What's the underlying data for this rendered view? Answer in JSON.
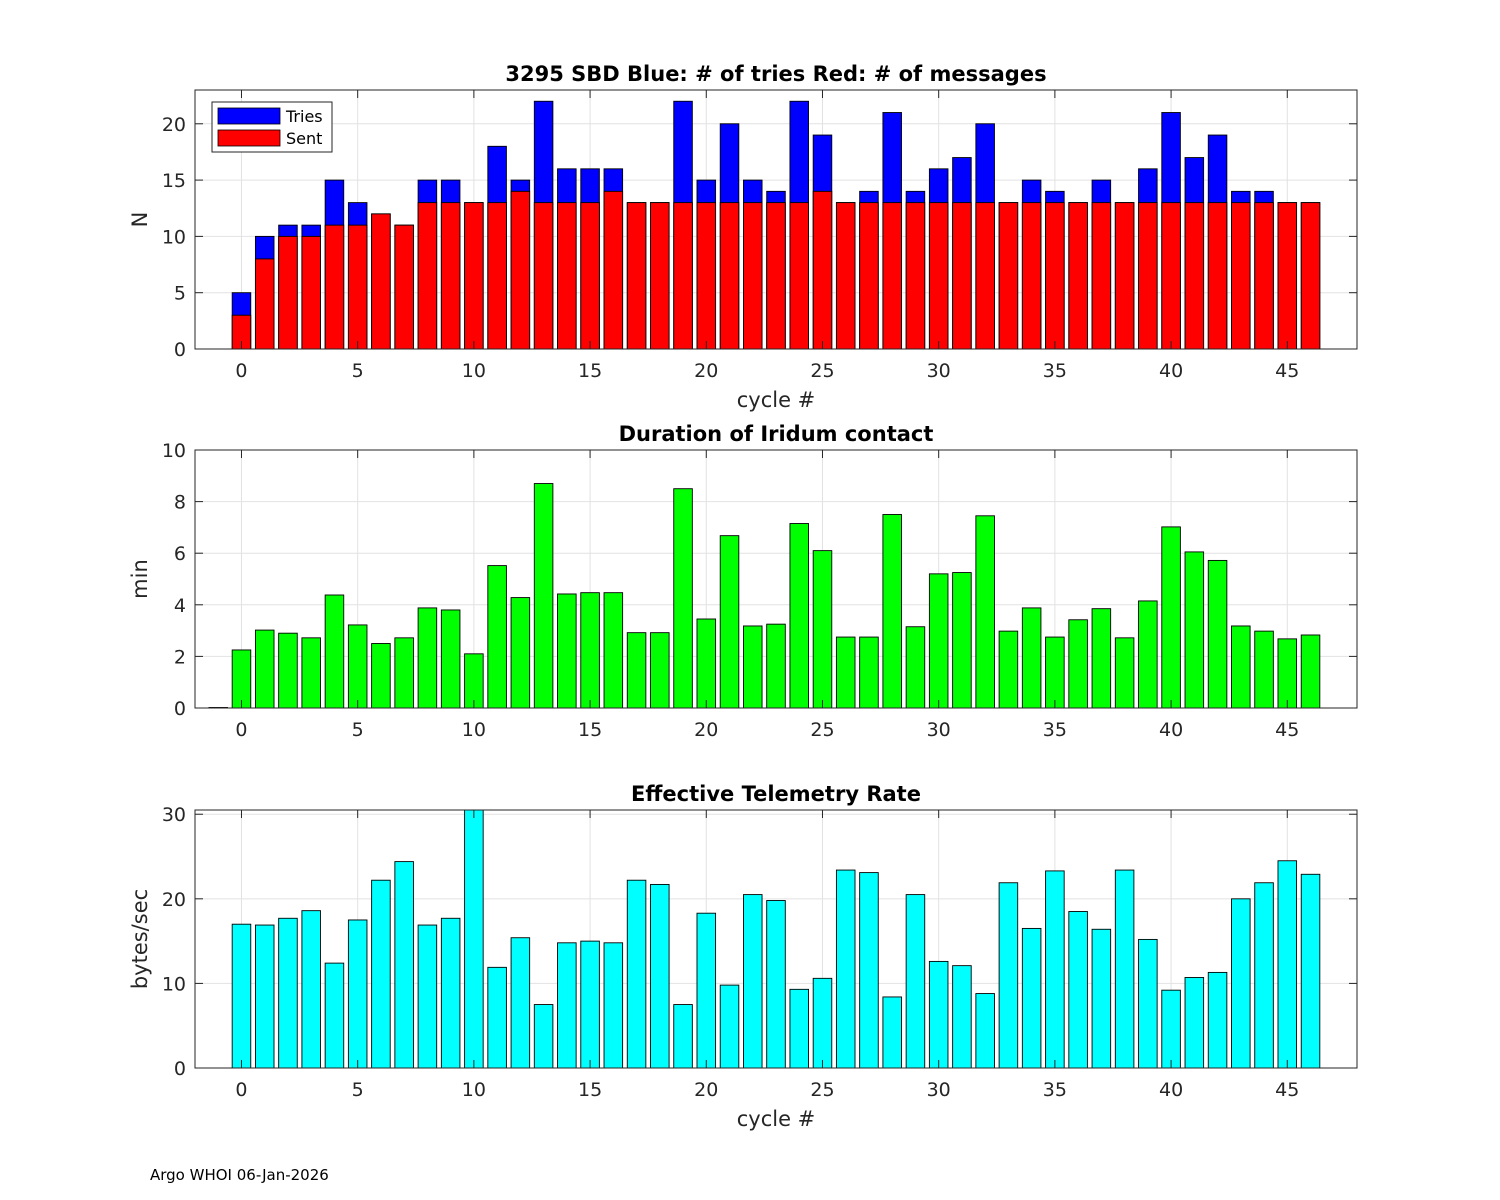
{
  "footer": "Argo WHOI 06-Jan-2026",
  "chart_data": [
    {
      "type": "bar",
      "stacked": "overlay",
      "title": "3295 SBD  Blue: # of tries   Red: # of messages",
      "xlabel": "cycle #",
      "ylabel": "N",
      "xlim": [
        -2,
        48
      ],
      "ylim": [
        0,
        23
      ],
      "xticks": [
        0,
        5,
        10,
        15,
        20,
        25,
        30,
        35,
        40,
        45
      ],
      "yticks": [
        0,
        5,
        10,
        15,
        20
      ],
      "grid": true,
      "legend": "top-left",
      "x": [
        0,
        1,
        2,
        3,
        4,
        5,
        6,
        7,
        8,
        9,
        10,
        11,
        12,
        13,
        14,
        15,
        16,
        17,
        18,
        19,
        20,
        21,
        22,
        23,
        24,
        25,
        26,
        27,
        28,
        29,
        30,
        31,
        32,
        33,
        34,
        35,
        36,
        37,
        38,
        39,
        40,
        41,
        42,
        43,
        44,
        45,
        46
      ],
      "series": [
        {
          "name": "Tries",
          "color": "#0000ff",
          "values": [
            5,
            10,
            11,
            11,
            15,
            13,
            12,
            11,
            15,
            15,
            13,
            18,
            15,
            22,
            16,
            16,
            16,
            13,
            13,
            22,
            15,
            20,
            15,
            14,
            22,
            19,
            13,
            14,
            21,
            14,
            16,
            17,
            20,
            13,
            15,
            14,
            13,
            15,
            13,
            16,
            21,
            17,
            19,
            14,
            14,
            13,
            13
          ]
        },
        {
          "name": "Sent",
          "color": "#ff0000",
          "values": [
            3,
            8,
            10,
            10,
            11,
            11,
            12,
            11,
            13,
            13,
            13,
            13,
            14,
            13,
            13,
            13,
            14,
            13,
            13,
            13,
            13,
            13,
            13,
            13,
            13,
            14,
            13,
            13,
            13,
            13,
            13,
            13,
            13,
            13,
            13,
            13,
            13,
            13,
            13,
            13,
            13,
            13,
            13,
            13,
            13,
            13,
            13
          ]
        }
      ]
    },
    {
      "type": "bar",
      "title": "Duration of Iridum contact",
      "xlabel": "",
      "ylabel": "min",
      "xlim": [
        -2,
        48
      ],
      "ylim": [
        0,
        10
      ],
      "xticks": [
        0,
        5,
        10,
        15,
        20,
        25,
        30,
        35,
        40,
        45
      ],
      "yticks": [
        0,
        2,
        4,
        6,
        8,
        10
      ],
      "grid": true,
      "x": [
        -1,
        0,
        1,
        2,
        3,
        4,
        5,
        6,
        7,
        8,
        9,
        10,
        11,
        12,
        13,
        14,
        15,
        16,
        17,
        18,
        19,
        20,
        21,
        22,
        23,
        24,
        25,
        26,
        27,
        28,
        29,
        30,
        31,
        32,
        33,
        34,
        35,
        36,
        37,
        38,
        39,
        40,
        41,
        42,
        43,
        44,
        45,
        46
      ],
      "series": [
        {
          "name": "Duration",
          "color": "#00ff00",
          "values": [
            0.02,
            2.25,
            3.02,
            2.9,
            2.72,
            4.38,
            3.22,
            2.5,
            2.72,
            3.88,
            3.8,
            2.1,
            5.52,
            4.28,
            8.7,
            4.42,
            4.47,
            4.47,
            2.92,
            2.92,
            8.5,
            3.45,
            6.68,
            3.18,
            3.25,
            7.15,
            6.1,
            2.75,
            2.75,
            7.5,
            3.15,
            5.2,
            5.25,
            7.45,
            2.98,
            3.88,
            2.75,
            3.42,
            3.85,
            2.72,
            4.15,
            7.02,
            6.05,
            5.72,
            3.18,
            2.98,
            2.68,
            2.83
          ]
        }
      ]
    },
    {
      "type": "bar",
      "title": "Effective Telemetry Rate",
      "xlabel": "cycle #",
      "ylabel": "bytes/sec",
      "xlim": [
        -2,
        48
      ],
      "ylim": [
        0,
        30.5
      ],
      "xticks": [
        0,
        5,
        10,
        15,
        20,
        25,
        30,
        35,
        40,
        45
      ],
      "yticks": [
        0,
        10,
        20,
        30
      ],
      "grid": true,
      "x": [
        0,
        1,
        2,
        3,
        4,
        5,
        6,
        7,
        8,
        9,
        10,
        11,
        12,
        13,
        14,
        15,
        16,
        17,
        18,
        19,
        20,
        21,
        22,
        23,
        24,
        25,
        26,
        27,
        28,
        29,
        30,
        31,
        32,
        33,
        34,
        35,
        36,
        37,
        38,
        39,
        40,
        41,
        42,
        43,
        44,
        45,
        46
      ],
      "series": [
        {
          "name": "Rate",
          "color": "#00ffff",
          "values": [
            17,
            16.9,
            17.7,
            18.6,
            12.4,
            17.5,
            22.2,
            24.4,
            16.9,
            17.7,
            30.5,
            11.9,
            15.4,
            7.5,
            14.8,
            15,
            14.8,
            22.2,
            21.7,
            7.5,
            18.3,
            9.8,
            20.5,
            19.8,
            9.3,
            10.6,
            23.4,
            23.1,
            8.4,
            20.5,
            12.6,
            12.1,
            8.8,
            21.9,
            16.5,
            23.3,
            18.5,
            16.4,
            23.4,
            15.2,
            9.2,
            10.7,
            11.3,
            20,
            21.9,
            24.5,
            22.9
          ]
        }
      ]
    }
  ]
}
